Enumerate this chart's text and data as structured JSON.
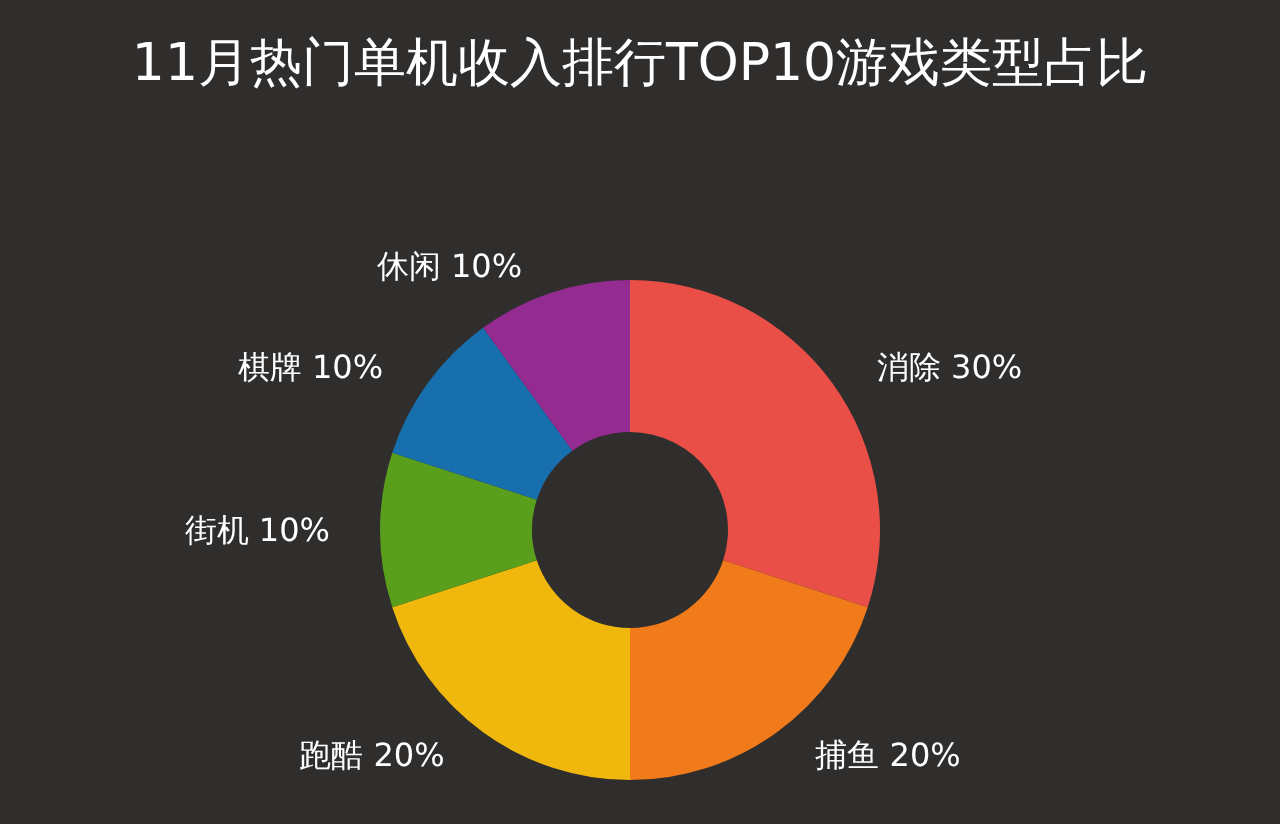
{
  "chart_data": {
    "type": "donut",
    "title": "11月热门单机收入排行TOP10游戏类型占比",
    "categories": [
      "消除",
      "捕鱼",
      "跑酷",
      "街机",
      "棋牌",
      "休闲"
    ],
    "values": [
      30,
      20,
      20,
      10,
      10,
      10
    ],
    "value_labels": [
      "30%",
      "20%",
      "20%",
      "10%",
      "10%",
      "10%"
    ],
    "colors": [
      "#ea4f47",
      "#f17a1b",
      "#f0b80c",
      "#5a9f1c",
      "#186fae",
      "#932b91"
    ],
    "legend": false
  }
}
